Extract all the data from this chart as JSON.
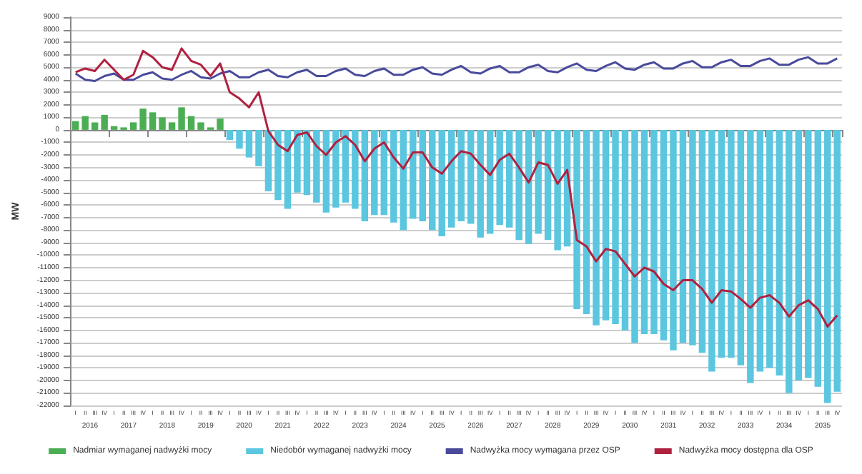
{
  "chart_data": {
    "type": "bar",
    "ylabel": "MW",
    "categories": [
      "I",
      "II",
      "III",
      "IV",
      "I",
      "II",
      "III",
      "IV",
      "I",
      "II",
      "III",
      "IV",
      "I",
      "II",
      "III",
      "IV",
      "I",
      "II",
      "III",
      "IV",
      "I",
      "II",
      "III",
      "IV",
      "I",
      "II",
      "III",
      "IV",
      "I",
      "II",
      "III",
      "IV",
      "I",
      "II",
      "III",
      "IV",
      "I",
      "II",
      "III",
      "IV",
      "I",
      "II",
      "III",
      "IV",
      "I",
      "II",
      "III",
      "IV",
      "I",
      "II",
      "III",
      "IV",
      "I",
      "II",
      "III",
      "IV",
      "I",
      "II",
      "III",
      "IV",
      "I",
      "II",
      "III",
      "IV",
      "I",
      "II",
      "III",
      "IV",
      "I",
      "II",
      "III",
      "IV",
      "I",
      "II",
      "III",
      "IV",
      "I",
      "II",
      "III",
      "IV"
    ],
    "annotations": [
      "2016",
      "2017",
      "2018",
      "2019",
      "2020",
      "2021",
      "2022",
      "2023",
      "2024",
      "2025",
      "2026",
      "2027",
      "2028",
      "2029",
      "2030",
      "2031",
      "2032",
      "2033",
      "2034",
      "2035"
    ],
    "series": [
      {
        "name": "Nadmiar wymaganej nadwyżki mocy",
        "color": "#4cae54",
        "values": [
          700,
          1100,
          600,
          1200,
          300,
          200,
          600,
          1700,
          1400,
          1000,
          600,
          1800,
          1100,
          600,
          200,
          900,
          null,
          null,
          null,
          null,
          null,
          null,
          null,
          null,
          null,
          null,
          null,
          null,
          null,
          null,
          null,
          null,
          null,
          null,
          null,
          null,
          null,
          null,
          null,
          null,
          null,
          null,
          null,
          null,
          null,
          null,
          null,
          null,
          null,
          null,
          null,
          null,
          null,
          null,
          null,
          null,
          null,
          null,
          null,
          null,
          null,
          null,
          null,
          null,
          null,
          null,
          null,
          null,
          null,
          null,
          null,
          null,
          null,
          null,
          null,
          null,
          null,
          null,
          null,
          null
        ]
      },
      {
        "name": "Niedobór wymaganej nadwyżki mocy",
        "color": "#5bc6df",
        "values": [
          null,
          null,
          null,
          null,
          null,
          null,
          null,
          null,
          null,
          null,
          null,
          null,
          null,
          null,
          null,
          null,
          -800,
          -1500,
          -2200,
          -2900,
          -4900,
          -5600,
          -6300,
          -5000,
          -5200,
          -5800,
          -6600,
          -6200,
          -5800,
          -6300,
          -7300,
          -6800,
          -6800,
          -7400,
          -8000,
          -7100,
          -7300,
          -8000,
          -8500,
          -7800,
          -7300,
          -7500,
          -8600,
          -8300,
          -7600,
          -7800,
          -8800,
          -9100,
          -8300,
          -8800,
          -9600,
          -9300,
          -14300,
          -14700,
          -15600,
          -15200,
          -15500,
          -16000,
          -17000,
          -16300,
          -16300,
          -16800,
          -17600,
          -17000,
          -17200,
          -17800,
          -19300,
          -18200,
          -18200,
          -18800,
          -20200,
          -19300,
          -19000,
          -19600,
          -21000,
          -20000,
          -19800,
          -20500,
          -21800,
          -20900
        ]
      },
      {
        "name": "Nadwyżka mocy wymagana przez OSP",
        "type": "line",
        "color": "#4a4a9c",
        "values": [
          4500,
          4000,
          3900,
          4300,
          4500,
          4000,
          4000,
          4400,
          4600,
          4100,
          4000,
          4400,
          4700,
          4200,
          4100,
          4500,
          4700,
          4200,
          4200,
          4600,
          4800,
          4300,
          4200,
          4600,
          4800,
          4300,
          4300,
          4700,
          4900,
          4400,
          4300,
          4700,
          4900,
          4400,
          4400,
          4800,
          5000,
          4500,
          4400,
          4800,
          5100,
          4600,
          4500,
          4900,
          5100,
          4600,
          4600,
          5000,
          5200,
          4700,
          4600,
          5000,
          5300,
          4800,
          4700,
          5100,
          5400,
          4900,
          4800,
          5200,
          5400,
          4900,
          4900,
          5300,
          5500,
          5000,
          5000,
          5400,
          5600,
          5100,
          5100,
          5500,
          5700,
          5200,
          5200,
          5600,
          5800,
          5300,
          5300,
          5700
        ]
      },
      {
        "name": "Nadwyżka mocy dostępna dla OSP",
        "type": "line",
        "color": "#b0213f",
        "values": [
          4600,
          4900,
          4700,
          5600,
          4800,
          4000,
          4400,
          6300,
          5800,
          5000,
          4800,
          6500,
          5500,
          5200,
          4300,
          5300,
          3000,
          2500,
          1800,
          3000,
          -100,
          -1200,
          -1700,
          -400,
          -200,
          -1300,
          -2000,
          -1000,
          -500,
          -1200,
          -2500,
          -1500,
          -1000,
          -2200,
          -3100,
          -1800,
          -1800,
          -3000,
          -3500,
          -2500,
          -1700,
          -1900,
          -2800,
          -3600,
          -2400,
          -1900,
          -3000,
          -4200,
          -2600,
          -2800,
          -4300,
          -3200,
          -8800,
          -9300,
          -10500,
          -9500,
          -9700,
          -10700,
          -11700,
          -11000,
          -11300,
          -12300,
          -12800,
          -12000,
          -12000,
          -12700,
          -13800,
          -12800,
          -12900,
          -13500,
          -14200,
          -13400,
          -13200,
          -13800,
          -14900,
          -14000,
          -13600,
          -14300,
          -15700,
          -14800
        ]
      }
    ],
    "ylim": [
      -22000,
      9000
    ],
    "yticks": [
      -22000,
      -21000,
      -20000,
      -19000,
      -18000,
      -17000,
      -16000,
      -15000,
      -14000,
      -13000,
      -12000,
      -11000,
      -10000,
      -9000,
      -8000,
      -7000,
      -6000,
      -5000,
      -4000,
      -3000,
      -2000,
      -1000,
      0,
      1000,
      2000,
      3000,
      4000,
      5000,
      6000,
      7000,
      8000,
      9000
    ],
    "stacked": true,
    "grid": "y",
    "legend": "bottom",
    "marker": "none",
    "line_style": "solid"
  }
}
